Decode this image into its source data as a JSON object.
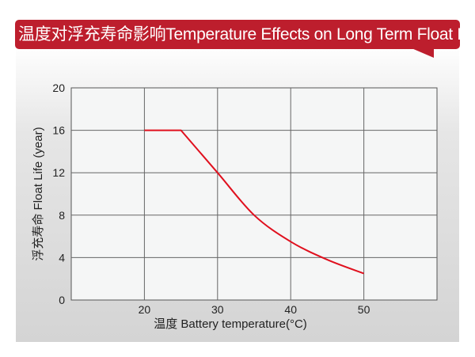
{
  "header": {
    "title": "温度对浮充寿命影响Temperature Effects on Long Term Float Life"
  },
  "colors": {
    "banner": "#bd1e2d",
    "series": "#e0101e"
  },
  "chart_data": {
    "type": "line",
    "title": "温度对浮充寿命影响Temperature Effects on Long Term Float Life",
    "xlabel": "温度  Battery temperature(°C)",
    "ylabel": "浮充寿命 Float Life (year)",
    "xlim": [
      10,
      60
    ],
    "ylim": [
      0,
      20
    ],
    "xticks": [
      20,
      30,
      40,
      50
    ],
    "yticks": [
      0,
      4,
      8,
      12,
      16,
      20
    ],
    "grid": true,
    "x": [
      20,
      25,
      30,
      35,
      40,
      45,
      50
    ],
    "y": [
      16,
      16,
      12,
      8,
      5.5,
      3.8,
      2.5
    ]
  }
}
